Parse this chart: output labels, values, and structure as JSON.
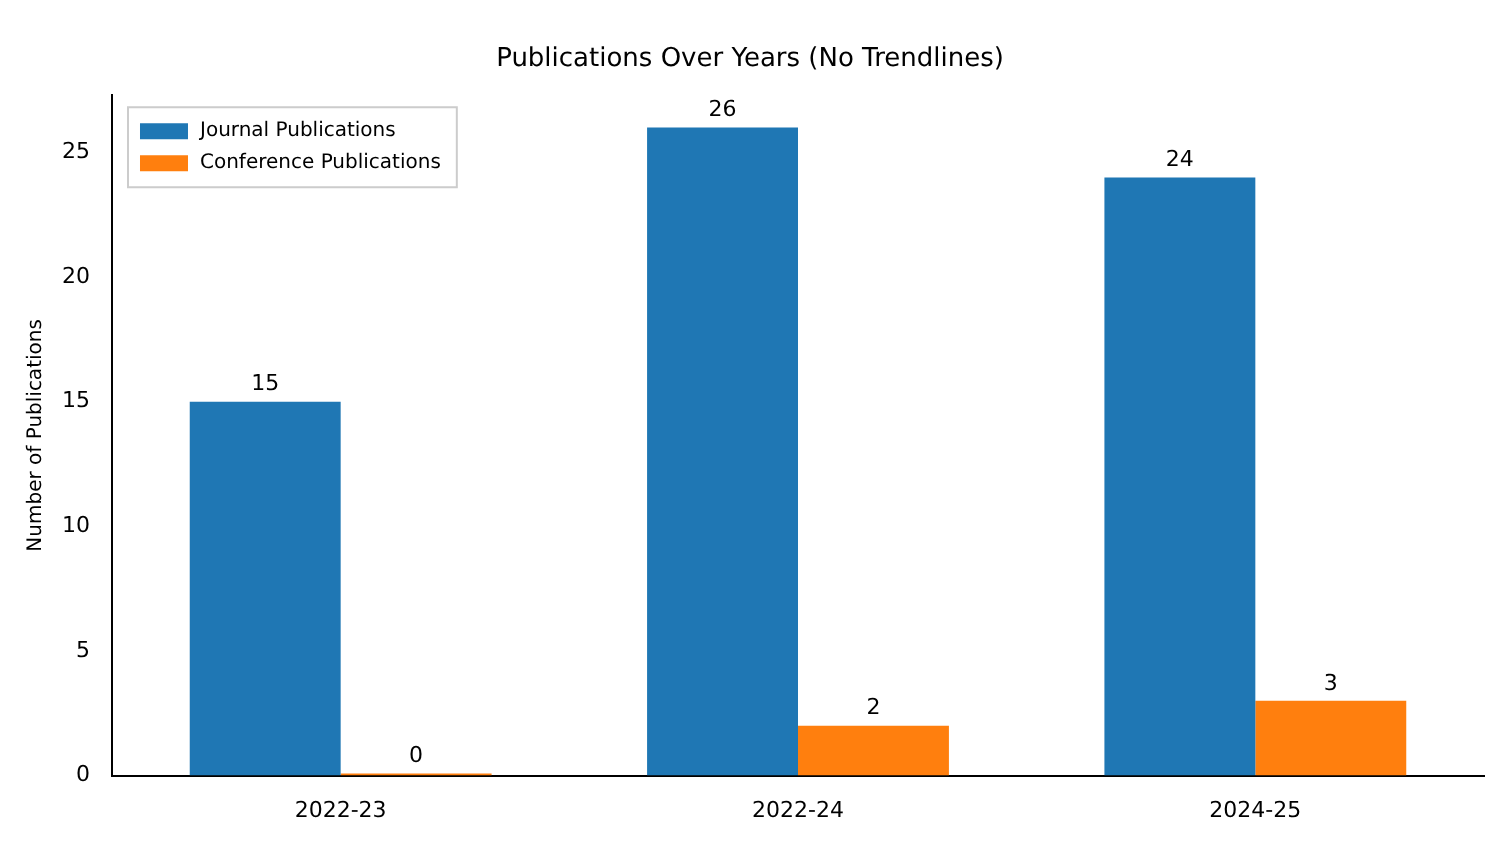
{
  "chart_data": {
    "type": "bar",
    "title": "Publications Over Years (No Trendlines)",
    "ylabel": "Number of Publications",
    "categories": [
      "2022-23",
      "2022-24",
      "2024-25"
    ],
    "series": [
      {
        "name": "Journal Publications",
        "color": "#1f77b4",
        "values": [
          15,
          26,
          24
        ]
      },
      {
        "name": "Conference Publications",
        "color": "#ff7f0e",
        "values": [
          0,
          2,
          3
        ]
      }
    ],
    "ylim": [
      0,
      27.3
    ],
    "yticks": [
      0,
      5,
      10,
      15,
      20,
      25
    ],
    "grid": false,
    "legend": "top left",
    "data_labels": true
  }
}
